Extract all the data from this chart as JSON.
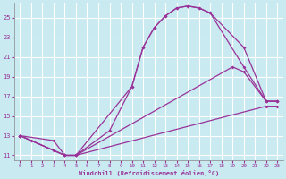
{
  "xlabel": "Windchill (Refroidissement éolien,°C)",
  "xlim": [
    -0.5,
    23.5
  ],
  "ylim": [
    10.5,
    26.5
  ],
  "yticks": [
    11,
    13,
    15,
    17,
    19,
    21,
    23,
    25
  ],
  "xticks": [
    0,
    1,
    2,
    3,
    4,
    5,
    6,
    7,
    8,
    9,
    10,
    11,
    12,
    13,
    14,
    15,
    16,
    17,
    18,
    19,
    20,
    21,
    22,
    23
  ],
  "bg_color": "#c8eaf0",
  "grid_color": "#ffffff",
  "line_color": "#993399",
  "l1x": [
    0,
    1,
    3,
    4,
    5,
    10,
    11,
    12,
    13,
    14,
    15,
    16,
    17,
    20,
    22,
    23
  ],
  "l1y": [
    13,
    12.5,
    11.5,
    11.0,
    11.0,
    18.0,
    22.0,
    24.0,
    25.2,
    26.0,
    26.2,
    26.0,
    25.5,
    22.0,
    16.5,
    16.5
  ],
  "l2x": [
    0,
    3,
    4,
    5,
    8,
    10,
    11,
    12,
    13,
    14,
    15,
    16,
    17,
    20,
    22,
    23
  ],
  "l2y": [
    13,
    12.5,
    11.0,
    11.0,
    13.5,
    18.0,
    22.0,
    24.0,
    25.2,
    26.0,
    26.2,
    26.0,
    25.5,
    20.0,
    16.5,
    16.5
  ],
  "l3x": [
    0,
    4,
    5,
    22,
    23
  ],
  "l3y": [
    13,
    11.0,
    11.0,
    16.0,
    16.0
  ],
  "l4x": [
    0,
    4,
    5,
    19,
    20,
    22,
    23
  ],
  "l4y": [
    13,
    11.0,
    11.0,
    20.0,
    19.5,
    16.5,
    16.5
  ]
}
